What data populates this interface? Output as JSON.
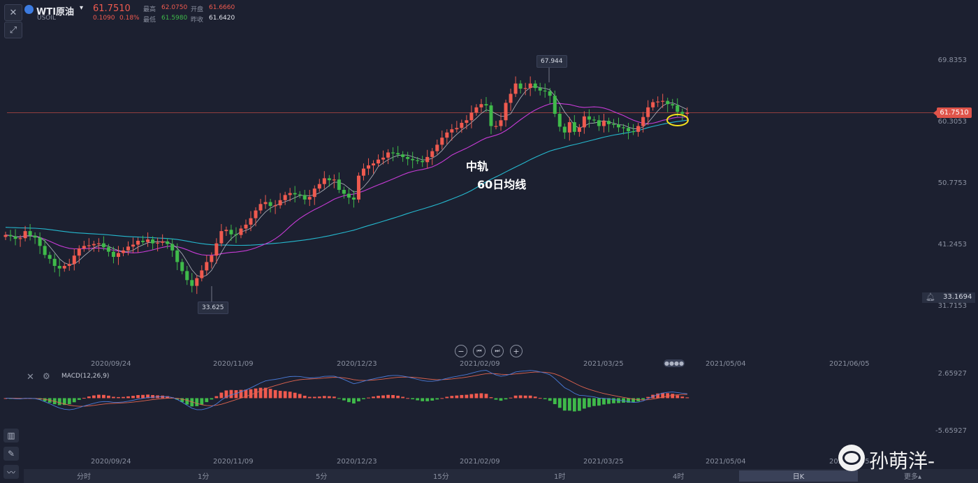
{
  "header": {
    "symbol": "WTI原油",
    "symbol_code": "USOIL",
    "last_price": "61.7510",
    "change": "0.1090",
    "change_pct": "0.18%",
    "high_label": "最高",
    "high_value": "62.0750",
    "low_label": "最低",
    "low_value": "61.5980",
    "open_label": "开盘",
    "open_value": "61.6660",
    "prev_close_label": "昨收",
    "prev_close_value": "61.6420"
  },
  "annotations": {
    "mid_band": "中轨",
    "ma60": "60日均线"
  },
  "price_axis": {
    "current_price_tag": "61.7510",
    "alert_price": "33.1694"
  },
  "navigation": {
    "zoom_out": "−",
    "prev": "⏮",
    "next": "⏭",
    "zoom_in": "+"
  },
  "indicator": {
    "name": "MACD(12,26,9)"
  },
  "timeframes": {
    "items": [
      "分时",
      "1分",
      "5分",
      "15分",
      "1时",
      "4时",
      "日K",
      "更多▴"
    ],
    "active_index": 6
  },
  "watermark": {
    "author": "孙萌洋-"
  },
  "colors": {
    "up": "#ef5a4f",
    "down": "#3fba4a",
    "mid_band": "#c73bd6",
    "ma60": "#25b9cf",
    "ma_short": "#cfd3dc",
    "macd_line": "#4a7bd9",
    "signal_line": "#e0644f",
    "highlight": "#f5e31c"
  },
  "chart_data": [
    {
      "type": "candlestick",
      "x_dates": [
        "2020/09/24",
        "2020/11/09",
        "2020/12/23",
        "2021/02/09",
        "2021/03/25",
        "2021/05/04",
        "2021/06/05"
      ],
      "y_ticks": [
        "69.8353",
        "60.3053",
        "50.7753",
        "41.2453",
        "31.7153"
      ],
      "ylim": [
        31.7153,
        69.8353
      ],
      "max_label": "67.944",
      "min_label": "33.625",
      "current_price": 61.751,
      "closes": [
        42.8,
        42.6,
        42.2,
        42.3,
        43.4,
        42.7,
        42.4,
        41.1,
        39.7,
        39.1,
        38.0,
        37.6,
        38.0,
        38.3,
        39.6,
        40.7,
        41.1,
        41.2,
        41.4,
        41.5,
        40.9,
        40.2,
        39.4,
        40.0,
        40.4,
        41.0,
        41.3,
        41.9,
        41.7,
        42.1,
        41.5,
        41.6,
        41.8,
        41.4,
        40.4,
        38.6,
        37.2,
        35.8,
        34.9,
        36.1,
        37.3,
        38.6,
        39.6,
        41.5,
        43.4,
        43.6,
        42.9,
        42.8,
        43.8,
        44.4,
        45.4,
        46.6,
        47.6,
        47.9,
        47.3,
        47.4,
        48.2,
        49.0,
        49.3,
        49.1,
        49.0,
        48.3,
        48.7,
        50.0,
        50.7,
        51.6,
        51.3,
        51.4,
        49.8,
        49.2,
        48.6,
        48.3,
        52.0,
        53.1,
        53.6,
        53.9,
        54.5,
        54.8,
        55.6,
        55.5,
        55.3,
        54.9,
        54.6,
        54.4,
        54.3,
        54.1,
        54.9,
        55.8,
        56.8,
        57.9,
        58.7,
        59.2,
        59.4,
        60.2,
        60.6,
        61.8,
        62.6,
        63.1,
        62.9,
        59.7,
        59.7,
        60.6,
        63.3,
        64.7,
        66.3,
        65.5,
        65.6,
        66.3,
        65.6,
        65.2,
        65.1,
        64.4,
        61.6,
        59.6,
        58.7,
        60.3,
        58.8,
        59.5,
        61.2,
        60.7,
        60.6,
        59.7,
        60.5,
        60.0,
        59.9,
        59.5,
        59.4,
        58.9,
        58.8,
        59.7,
        61.1,
        62.6,
        63.4,
        63.5,
        63.6,
        63.1,
        62.9,
        61.9,
        61.6,
        61.8
      ]
    },
    {
      "type": "bar",
      "name": "MACD(12,26,9)",
      "y_ticks": [
        "2.65927",
        "-5.65927"
      ],
      "ylim": [
        -5.65927,
        2.65927
      ]
    }
  ]
}
